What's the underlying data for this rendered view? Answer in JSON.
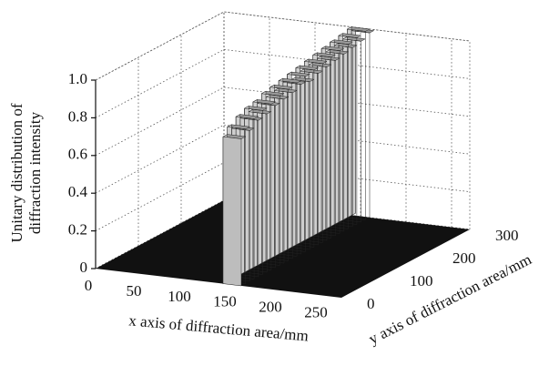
{
  "chart_data": {
    "type": "surface3d",
    "xlabel": "x axis of diffraction area/mm",
    "ylabel": "y axis of diffraction area/mm",
    "zlabel": [
      "Unitary distribution of",
      "diffraction intensity"
    ],
    "xlim": [
      0,
      270
    ],
    "xticks": [
      0,
      50,
      100,
      150,
      200,
      250
    ],
    "ylim": [
      0,
      300
    ],
    "yticks": [
      0,
      100,
      200,
      300
    ],
    "zlim": [
      0,
      1
    ],
    "zticks": [
      0,
      0.2,
      0.4,
      0.6,
      0.8,
      {
        "value": 1,
        "label": "1.0"
      }
    ],
    "ridge_x": [
      140,
      160
    ],
    "y": [
      0,
      10,
      20,
      30,
      40,
      50,
      60,
      70,
      80,
      90,
      100,
      110,
      120,
      130,
      140,
      150,
      160,
      170,
      180,
      190,
      200,
      210,
      220,
      230,
      240,
      250,
      260,
      270,
      280,
      290,
      300
    ],
    "values": [
      0.78,
      0.82,
      0.8,
      0.85,
      0.83,
      0.87,
      0.84,
      0.88,
      0.86,
      0.9,
      0.87,
      0.91,
      0.88,
      0.92,
      0.9,
      0.93,
      0.89,
      0.94,
      0.91,
      0.95,
      0.92,
      0.96,
      0.93,
      0.97,
      0.94,
      0.98,
      0.95,
      0.99,
      0.96,
      1.0,
      0.98
    ],
    "floor_color": "#111111",
    "ridge_color": "#cfcfcf",
    "grid": true
  }
}
